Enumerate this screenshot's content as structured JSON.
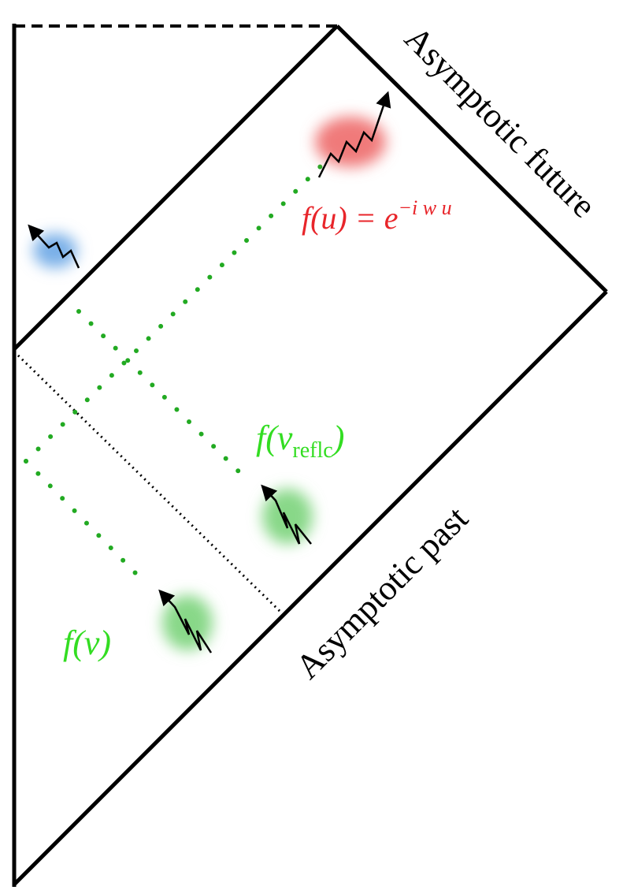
{
  "labels": {
    "future": "Asymptotic future",
    "past": "Asymptotic past",
    "f_u": {
      "base": "f(u) = e",
      "sup": "−i w u"
    },
    "f_v_reflc": {
      "base": "f(v",
      "sub": "reflc",
      "close": ")"
    },
    "f_v": "f(v)"
  }
}
